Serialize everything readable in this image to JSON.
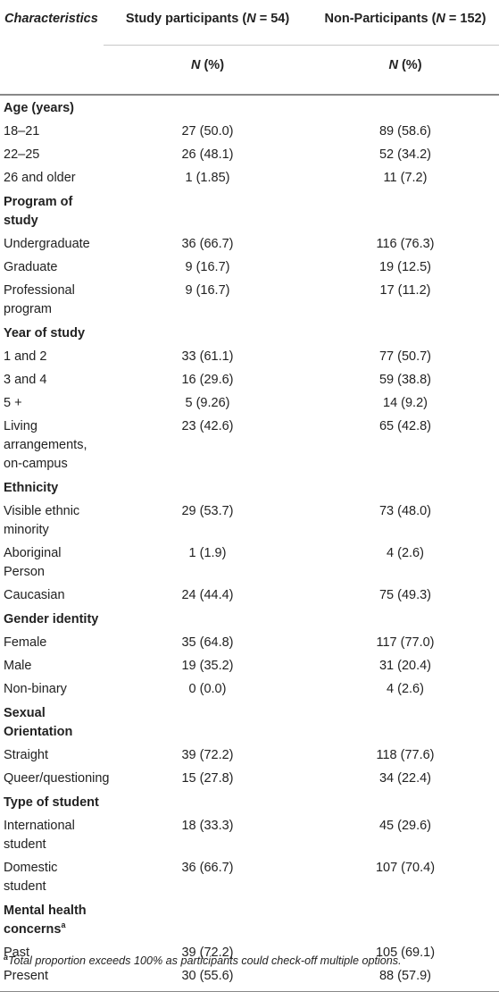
{
  "header": {
    "characteristics": "Characteristics",
    "col_participants": "Study participants (",
    "col_participants_n": "N",
    "col_participants_tail": " = 54)",
    "col_nonparticipants": "Non-Participants (",
    "col_nonparticipants_n": "N",
    "col_nonparticipants_tail": " = 152)",
    "sub_n": "N",
    "sub_pct": " (%)"
  },
  "sections": [
    {
      "title": "Age (years)",
      "rows": [
        {
          "label": "18–21",
          "participants": "27 (50.0)",
          "nonparticipants": "89 (58.6)"
        },
        {
          "label": "22–25",
          "participants": "26 (48.1)",
          "nonparticipants": "52 (34.2)"
        },
        {
          "label": "26 and older",
          "participants": "1 (1.85)",
          "nonparticipants": "11 (7.2)"
        }
      ]
    },
    {
      "title": "Program of study",
      "rows": [
        {
          "label": "Undergraduate",
          "participants": "36 (66.7)",
          "nonparticipants": "116 (76.3)"
        },
        {
          "label": "Graduate",
          "participants": "9 (16.7)",
          "nonparticipants": "19 (12.5)"
        },
        {
          "label": "Professional program",
          "participants": "9 (16.7)",
          "nonparticipants": "17 (11.2)"
        }
      ]
    },
    {
      "title": "Year of study",
      "rows": [
        {
          "label": "1 and 2",
          "participants": "33 (61.1)",
          "nonparticipants": "77 (50.7)"
        },
        {
          "label": "3 and 4",
          "participants": "16 (29.6)",
          "nonparticipants": "59 (38.8)"
        },
        {
          "label": "5 +",
          "participants": "5 (9.26)",
          "nonparticipants": "14 (9.2)"
        },
        {
          "label": "Living arrangements, on-campus",
          "participants": "23 (42.6)",
          "nonparticipants": "65 (42.8)"
        }
      ]
    },
    {
      "title": "Ethnicity",
      "rows": [
        {
          "label": "Visible ethnic minority",
          "participants": "29 (53.7)",
          "nonparticipants": "73 (48.0)"
        },
        {
          "label": "Aboriginal Person",
          "participants": "1 (1.9)",
          "nonparticipants": "4 (2.6)"
        },
        {
          "label": "Caucasian",
          "participants": "24 (44.4)",
          "nonparticipants": "75 (49.3)"
        }
      ]
    },
    {
      "title": "Gender identity",
      "rows": [
        {
          "label": "Female",
          "participants": "35 (64.8)",
          "nonparticipants": "117 (77.0)"
        },
        {
          "label": "Male",
          "participants": "19 (35.2)",
          "nonparticipants": "31 (20.4)"
        },
        {
          "label": "Non-binary",
          "participants": "0 (0.0)",
          "nonparticipants": "4 (2.6)"
        }
      ]
    },
    {
      "title": "Sexual Orientation",
      "rows": [
        {
          "label": "Straight",
          "participants": "39 (72.2)",
          "nonparticipants": "118 (77.6)"
        },
        {
          "label": "Queer/questioning",
          "participants": "15 (27.8)",
          "nonparticipants": "34 (22.4)"
        }
      ]
    },
    {
      "title": "Type of student",
      "rows": [
        {
          "label": "International student",
          "participants": "18 (33.3)",
          "nonparticipants": "45 (29.6)"
        },
        {
          "label": "Domestic student",
          "participants": "36 (66.7)",
          "nonparticipants": "107 (70.4)"
        }
      ]
    },
    {
      "title": "Mental health concerns",
      "title_sup": "a",
      "rows": [
        {
          "label": "Past",
          "participants": "39 (72.2)",
          "nonparticipants": "105 (69.1)"
        },
        {
          "label": "Present",
          "participants": "30 (55.6)",
          "nonparticipants": "88 (57.9)"
        }
      ]
    }
  ],
  "footnote": {
    "marker": "a",
    "text": "Total proportion exceeds 100% as participants could check-off multiple options."
  }
}
